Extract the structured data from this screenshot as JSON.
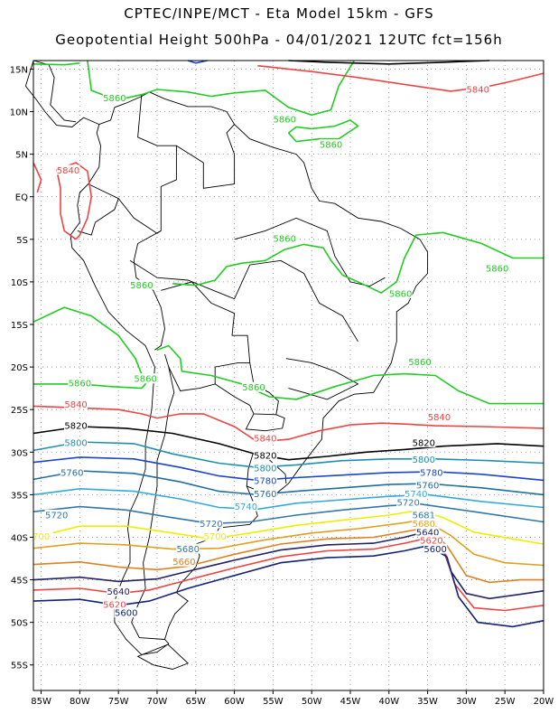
{
  "header": {
    "line1": "CPTEC/INPE/MCT -  Eta Model 15km - GFS",
    "line2": "Geopotential Height 500hPa - 04/01/2021 12UTC fct=156h"
  },
  "axes": {
    "lat_labels": [
      "15N",
      "10N",
      "5N",
      "EQ",
      "5S",
      "10S",
      "15S",
      "20S",
      "25S",
      "30S",
      "35S",
      "40S",
      "45S",
      "50S",
      "55S"
    ],
    "lat_values": [
      15,
      10,
      5,
      0,
      -5,
      -10,
      -15,
      -20,
      -25,
      -30,
      -35,
      -40,
      -45,
      -50,
      -55
    ],
    "lon_labels": [
      "85W",
      "80W",
      "75W",
      "70W",
      "65W",
      "60W",
      "55W",
      "50W",
      "45W",
      "40W",
      "35W",
      "30W",
      "25W",
      "20W"
    ],
    "lon_values": [
      -85,
      -80,
      -75,
      -70,
      -65,
      -60,
      -55,
      -50,
      -45,
      -40,
      -35,
      -30,
      -25,
      -20
    ],
    "lon_range": [
      -86,
      -20
    ],
    "lat_range": [
      -58,
      16
    ],
    "grid": "dotted"
  },
  "contour_levels": [
    {
      "value": "5860",
      "color": "#22cc22"
    },
    {
      "value": "5840",
      "color": "#ee4444"
    },
    {
      "value": "5820",
      "color": "#000000"
    },
    {
      "value": "5800",
      "color": "#1f8fb0"
    },
    {
      "value": "5780",
      "color": "#1a44cc"
    },
    {
      "value": "5760",
      "color": "#1f6fa0"
    },
    {
      "value": "5740",
      "color": "#33aadd"
    },
    {
      "value": "5720",
      "color": "#3377aa"
    },
    {
      "value": "5700",
      "color": "#eeee00"
    },
    {
      "value": "5680",
      "color": "#e0a020"
    },
    {
      "value": "5660",
      "color": "#e08020"
    },
    {
      "value": "5640",
      "color": "#222266"
    },
    {
      "value": "5620",
      "color": "#ee4444"
    },
    {
      "value": "5600",
      "color": "#112277"
    }
  ],
  "contour_labels": [
    {
      "text": "5860",
      "lon": -75.5,
      "lat": 11.5,
      "color": "#22cc22"
    },
    {
      "text": "5860",
      "lon": -53.5,
      "lat": 9.0,
      "color": "#22cc22"
    },
    {
      "text": "5860",
      "lon": -47.5,
      "lat": 6.0,
      "color": "#22cc22"
    },
    {
      "text": "5860",
      "lon": -53.5,
      "lat": -5.0,
      "color": "#22cc22"
    },
    {
      "text": "5860",
      "lon": -26.0,
      "lat": -8.5,
      "color": "#22cc22"
    },
    {
      "text": "5860",
      "lon": -72.0,
      "lat": -10.5,
      "color": "#22cc22"
    },
    {
      "text": "5860",
      "lon": -38.5,
      "lat": -11.5,
      "color": "#22cc22"
    },
    {
      "text": "5860",
      "lon": -80.0,
      "lat": -22.0,
      "color": "#22cc22"
    },
    {
      "text": "5860",
      "lon": -71.5,
      "lat": -21.5,
      "color": "#22cc22"
    },
    {
      "text": "5860",
      "lon": -36.0,
      "lat": -19.5,
      "color": "#22cc22"
    },
    {
      "text": "5860",
      "lon": -57.5,
      "lat": -22.5,
      "color": "#22cc22"
    },
    {
      "text": "5840",
      "lon": -28.5,
      "lat": 12.5,
      "color": "#ee4444"
    },
    {
      "text": "5840",
      "lon": -81.5,
      "lat": 3.0,
      "color": "#ee4444"
    },
    {
      "text": "5840",
      "lon": -80.5,
      "lat": -24.5,
      "color": "#ee4444"
    },
    {
      "text": "5840",
      "lon": -33.5,
      "lat": -26.0,
      "color": "#ee4444"
    },
    {
      "text": "5840",
      "lon": -56.0,
      "lat": -28.5,
      "color": "#ee4444"
    },
    {
      "text": "5820",
      "lon": -80.5,
      "lat": -27.0,
      "color": "#000000"
    },
    {
      "text": "5820",
      "lon": -56.0,
      "lat": -30.5,
      "color": "#000000"
    },
    {
      "text": "5820",
      "lon": -35.5,
      "lat": -29.0,
      "color": "#000000"
    },
    {
      "text": "5800",
      "lon": -80.5,
      "lat": -29.0,
      "color": "#1f8fb0"
    },
    {
      "text": "5800",
      "lon": -56.0,
      "lat": -32.0,
      "color": "#1f8fb0"
    },
    {
      "text": "5800",
      "lon": -35.5,
      "lat": -31.0,
      "color": "#1f8fb0"
    },
    {
      "text": "5780",
      "lon": -56.0,
      "lat": -33.5,
      "color": "#1a44cc"
    },
    {
      "text": "5780",
      "lon": -34.5,
      "lat": -32.5,
      "color": "#1a44cc"
    },
    {
      "text": "5760",
      "lon": -81.0,
      "lat": -32.5,
      "color": "#1f6fa0"
    },
    {
      "text": "5760",
      "lon": -56.0,
      "lat": -35.0,
      "color": "#1f6fa0"
    },
    {
      "text": "5760",
      "lon": -35.0,
      "lat": -34.0,
      "color": "#1f6fa0"
    },
    {
      "text": "5740",
      "lon": -58.5,
      "lat": -36.5,
      "color": "#33aadd"
    },
    {
      "text": "5740",
      "lon": -36.5,
      "lat": -35.0,
      "color": "#33aadd"
    },
    {
      "text": "5720",
      "lon": -83.0,
      "lat": -37.5,
      "color": "#3377aa"
    },
    {
      "text": "5720",
      "lon": -63.0,
      "lat": -38.5,
      "color": "#3377aa"
    },
    {
      "text": "5720",
      "lon": -37.5,
      "lat": -36.0,
      "color": "#3377aa"
    },
    {
      "text": "700",
      "lon": -85.0,
      "lat": -40.0,
      "color": "#eeee00"
    },
    {
      "text": "5700",
      "lon": -62.5,
      "lat": -40.0,
      "color": "#eeee00"
    },
    {
      "text": "5680",
      "lon": -66.0,
      "lat": -41.5,
      "color": "#3377aa"
    },
    {
      "text": "5660",
      "lon": -66.5,
      "lat": -43.0,
      "color": "#e08020"
    },
    {
      "text": "5681",
      "lon": -35.5,
      "lat": -37.5,
      "color": "#3377aa"
    },
    {
      "text": "5680",
      "lon": -35.5,
      "lat": -38.5,
      "color": "#e0a020"
    },
    {
      "text": "5640",
      "lon": -75.0,
      "lat": -46.5,
      "color": "#222266"
    },
    {
      "text": "5620",
      "lon": -75.5,
      "lat": -48.0,
      "color": "#ee4444"
    },
    {
      "text": "5600",
      "lon": -74.0,
      "lat": -49.0,
      "color": "#112277"
    },
    {
      "text": "5640",
      "lon": -35.0,
      "lat": -39.5,
      "color": "#222266"
    },
    {
      "text": "5620",
      "lon": -34.5,
      "lat": -40.5,
      "color": "#ee4444"
    },
    {
      "text": "5600",
      "lon": -34.0,
      "lat": -41.5,
      "color": "#112277"
    }
  ]
}
